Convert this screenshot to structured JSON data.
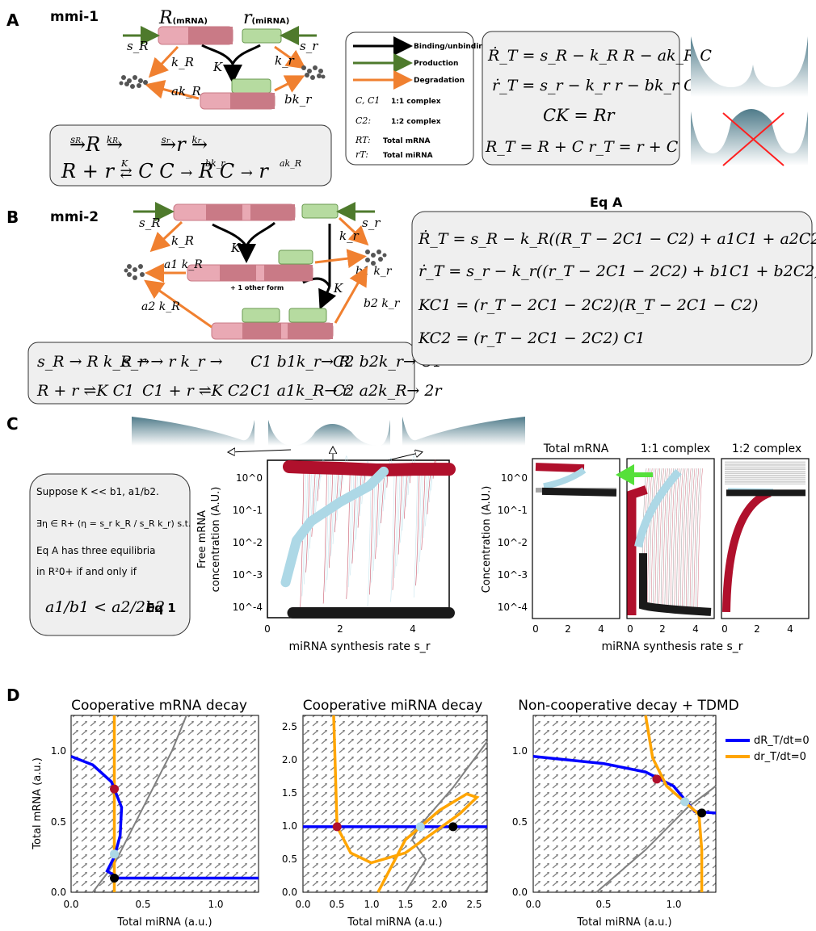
{
  "panel_labels": {
    "A": "A",
    "B": "B",
    "C": "C",
    "D": "D"
  },
  "colors": {
    "mrna": "#e9a9b4",
    "mrna_dark": "#c97a86",
    "mirna": "#b6dba0",
    "production": "#4e7a2c",
    "degradation": "#f08030",
    "red_traj": "#b0102c",
    "blue_traj": "#add8e6",
    "black_traj": "#1a1a1a",
    "nullcline_R": "#0000ff",
    "nullcline_r": "#ffa500",
    "landscape": "#4f7b8a",
    "highlight_arrow": "#55e03a"
  },
  "panelA": {
    "title": "mmi-1",
    "R_label": "R",
    "R_sub": "(mRNA)",
    "r_label": "r",
    "r_sub": "(miRNA)",
    "sR": "s_R",
    "sr": "s_r",
    "kR": "k_R",
    "kr": "k_r",
    "K": "K",
    "akR": "ak_R",
    "bkr": "bk_r",
    "reactions_line1": [
      "s_R → R",
      "k_R →",
      "s_r → r",
      "k_r →"
    ],
    "reactions_line2": [
      "R + r ⇌K C",
      "C bk_r→ R",
      "C ak_R→ r"
    ],
    "equations": [
      "Ṙ_T = s_R − k_R R − ak_R C",
      "ṙ_T = s_r − k_r r − bk_r C",
      "CK = Rr",
      "R_T = R + C   r_T = r + C"
    ]
  },
  "legend": {
    "binding": "Binding/unbinding",
    "production": "Production",
    "degradation": "Degradation",
    "c11_sym": "C, C1",
    "c11": "1:1 complex",
    "c2_sym": "C2:",
    "c2": "1:2 complex",
    "RT_sym": "RT:",
    "RT": "Total mRNA",
    "rT_sym": "rT:",
    "rT": "Total miRNA"
  },
  "panelB": {
    "title": "mmi-2",
    "sR": "s_R",
    "sr": "s_r",
    "kR": "k_R",
    "kr": "k_r",
    "K": "K",
    "K2": "K",
    "a1kR": "a1 k_R",
    "b1kr": "b1 k_r",
    "a2kR": "a2 k_R",
    "b2kr": "b2 k_r",
    "other_form": "+ 1 other form",
    "eq_title": "Eq A",
    "equations": [
      "Ṙ_T = s_R − k_R((R_T − 2C1 − C2) + a1C1 + a2C2)",
      "ṙ_T = s_r − k_r((r_T − 2C1 − 2C2) + b1C1 + b2C2)",
      "KC1 = (r_T − 2C1 − 2C2)(R_T − 2C1 − C2)",
      "KC2 = (r_T − 2C1 − 2C2) C1"
    ],
    "reactions": [
      "s_R → R k_R →",
      "s_r → r k_r →",
      "C1 b1k_r→ R",
      "C2 b2k_r→ C1",
      "R + r ⇌K C1",
      "C1 + r ⇌K C2",
      "C1 a1k_R→ r",
      "C2 a2k_R→ 2r"
    ]
  },
  "panelC": {
    "box_lines": [
      "Suppose K << b1, a1/b2.",
      "∃η ∈ R+ (η = s_r k_R / s_R k_r) s.t.",
      "Eq A has three equilibria",
      "in R²0+ if and only if",
      "a1/b1 < a2/2b2",
      "Eq 1"
    ],
    "main_ylabel_1": "Free mRNA",
    "main_ylabel_2": "concentration (A.U.)",
    "main_xlabel": "miRNA synthesis rate s_r",
    "main_xticks": [
      "0",
      "2",
      "4"
    ],
    "main_yticks": [
      "10^0",
      "10^-1",
      "10^-2",
      "10^-3",
      "10^-4"
    ],
    "sub_titles": [
      "Total mRNA",
      "1:1 complex",
      "1:2 complex"
    ],
    "sub_ylabel": "Concentration (A.U.)",
    "sub_xlabel": "miRNA synthesis rate s_r",
    "sub_xticks": [
      "0",
      "2",
      "4"
    ],
    "sub_yticks": [
      "10^0",
      "10^-1",
      "10^-2",
      "10^-3",
      "10^-4"
    ]
  },
  "panelD": {
    "titles": [
      "Cooperative mRNA decay",
      "Cooperative miRNA decay",
      "Non-cooperative decay + TDMD"
    ],
    "xlabel": "Total miRNA (a.u.)",
    "ylabel": "Total mRNA (a.u.)",
    "legend_R": "dR_T/dt=0",
    "legend_r": "dr_T/dt=0",
    "plot1_xticks": [
      "0.0",
      "0.5",
      "1.0"
    ],
    "plot1_yticks": [
      "0.0",
      "0.5",
      "1.0"
    ],
    "plot2_xticks": [
      "0.0",
      "0.5",
      "1.0",
      "1.5",
      "2.0",
      "2.5"
    ],
    "plot2_yticks": [
      "0.0",
      "0.5",
      "1.0",
      "1.5",
      "2.0",
      "2.5"
    ],
    "plot3_xticks": [
      "0.0",
      "0.5",
      "1.0"
    ],
    "plot3_yticks": [
      "0.0",
      "0.5",
      "1.0"
    ]
  },
  "chart_data": [
    {
      "type": "line",
      "xlim": [
        0,
        5
      ],
      "ylim_log10": [
        -4.6,
        0.3
      ],
      "log_y": true,
      "series": [
        {
          "values": [
            [
              0.6,
              0.1
            ],
            [
              1.0,
              0.08
            ],
            [
              2.0,
              0.05
            ],
            [
              3.0,
              0.0
            ],
            [
              3.3,
              0.0
            ],
            [
              4.0,
              0.02
            ],
            [
              5.0,
              0.02
            ]
          ]
        },
        {
          "values": [
            [
              0.5,
              -3.5
            ],
            [
              0.8,
              -2.2
            ],
            [
              1.2,
              -1.6
            ],
            [
              2.0,
              -1.0
            ],
            [
              2.8,
              -0.5
            ],
            [
              3.2,
              -0.05
            ]
          ]
        },
        {
          "values": [
            [
              0.7,
              -4.45
            ],
            [
              5.0,
              -4.45
            ]
          ]
        }
      ]
    },
    {
      "type": "line",
      "title": "Cooperative mRNA decay",
      "xlim": [
        0,
        1.3
      ],
      "ylim": [
        0,
        1.25
      ]
    },
    {
      "type": "line",
      "title": "Cooperative miRNA decay",
      "xlim": [
        0,
        2.7
      ],
      "ylim": [
        0,
        2.7
      ]
    },
    {
      "type": "line",
      "title": "Non-cooperative decay + TDMD",
      "xlim": [
        0,
        1.3
      ],
      "ylim": [
        0,
        1.25
      ]
    }
  ]
}
